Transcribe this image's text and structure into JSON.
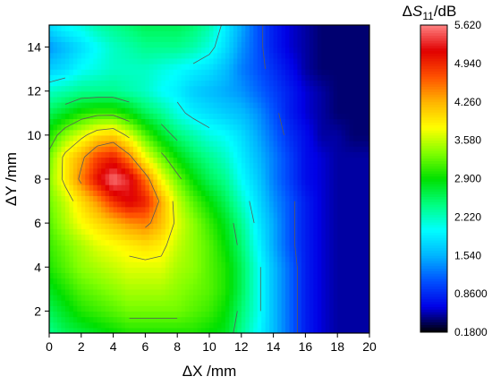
{
  "chart_data": {
    "type": "heatmap",
    "title": "",
    "xlabel": "ΔX /mm",
    "ylabel": "ΔY /mm",
    "colorbar_title": "ΔS11/dB",
    "colorbar_title_parts": {
      "prefix": "Δ",
      "symbol": "S",
      "subscript": "11",
      "suffix": "/dB"
    },
    "xlim": [
      0,
      20
    ],
    "ylim": [
      1,
      15
    ],
    "x_ticks": [
      "0",
      "2",
      "4",
      "6",
      "8",
      "10",
      "12",
      "14",
      "16",
      "18",
      "20"
    ],
    "y_ticks": [
      "2",
      "4",
      "6",
      "8",
      "10",
      "12",
      "14"
    ],
    "x": [
      0,
      1,
      2,
      3,
      4,
      5,
      6,
      7,
      8,
      9,
      10,
      11,
      12,
      13,
      14,
      15,
      16,
      17,
      18,
      19,
      20
    ],
    "y": [
      1,
      2,
      3,
      4,
      5,
      6,
      7,
      8,
      9,
      10,
      11,
      12,
      13,
      14,
      15
    ],
    "z": [
      [
        2.4,
        2.6,
        2.7,
        2.8,
        2.9,
        3.0,
        3.0,
        3.0,
        3.0,
        3.0,
        2.9,
        2.8,
        2.4,
        2.0,
        1.6,
        1.2,
        0.8,
        0.6,
        0.5,
        0.5,
        0.5
      ],
      [
        2.6,
        2.8,
        3.0,
        3.1,
        3.2,
        3.3,
        3.3,
        3.3,
        3.3,
        3.2,
        3.1,
        2.9,
        2.5,
        2.1,
        1.6,
        1.2,
        0.8,
        0.6,
        0.5,
        0.5,
        0.5
      ],
      [
        2.8,
        3.0,
        3.2,
        3.3,
        3.4,
        3.5,
        3.5,
        3.5,
        3.4,
        3.3,
        3.2,
        3.0,
        2.6,
        2.1,
        1.6,
        1.2,
        0.8,
        0.6,
        0.5,
        0.5,
        0.5
      ],
      [
        3.0,
        3.2,
        3.4,
        3.5,
        3.6,
        3.7,
        3.7,
        3.7,
        3.5,
        3.4,
        3.2,
        3.0,
        2.6,
        2.1,
        1.6,
        1.2,
        0.8,
        0.6,
        0.5,
        0.5,
        0.5
      ],
      [
        3.1,
        3.3,
        3.5,
        3.7,
        3.8,
        3.9,
        4.0,
        3.9,
        3.6,
        3.4,
        3.2,
        2.9,
        2.5,
        2.0,
        1.5,
        1.1,
        0.8,
        0.6,
        0.5,
        0.5,
        0.5
      ],
      [
        3.2,
        3.5,
        3.8,
        4.0,
        4.2,
        4.4,
        4.5,
        4.2,
        3.7,
        3.4,
        3.1,
        2.8,
        2.4,
        1.9,
        1.5,
        1.1,
        0.8,
        0.6,
        0.5,
        0.5,
        0.5
      ],
      [
        3.3,
        3.6,
        4.0,
        4.4,
        4.9,
        5.2,
        5.0,
        4.3,
        3.6,
        3.2,
        2.9,
        2.6,
        2.2,
        1.8,
        1.4,
        1.1,
        0.8,
        0.6,
        0.5,
        0.5,
        0.5
      ],
      [
        3.4,
        3.9,
        4.5,
        5.1,
        5.6,
        5.3,
        4.6,
        3.8,
        3.3,
        2.9,
        2.6,
        2.4,
        2.0,
        1.7,
        1.3,
        1.0,
        0.7,
        0.6,
        0.5,
        0.5,
        0.5
      ],
      [
        3.3,
        3.9,
        4.3,
        4.8,
        5.0,
        4.5,
        3.8,
        3.3,
        2.9,
        2.6,
        2.4,
        2.2,
        1.9,
        1.6,
        1.3,
        1.0,
        0.7,
        0.6,
        0.5,
        0.5,
        0.5
      ],
      [
        3.0,
        3.4,
        3.7,
        4.0,
        4.1,
        3.7,
        3.2,
        2.8,
        2.5,
        2.3,
        2.1,
        2.0,
        1.8,
        1.5,
        1.2,
        0.9,
        0.7,
        0.5,
        0.5,
        0.4,
        0.4
      ],
      [
        2.6,
        2.8,
        3.0,
        3.1,
        3.1,
        2.9,
        2.6,
        2.4,
        2.1,
        1.9,
        1.8,
        1.7,
        1.6,
        1.4,
        1.1,
        0.8,
        0.6,
        0.5,
        0.4,
        0.4,
        0.4
      ],
      [
        2.2,
        2.3,
        2.4,
        2.4,
        2.4,
        2.3,
        2.2,
        2.0,
        1.9,
        1.7,
        1.6,
        1.5,
        1.4,
        1.2,
        1.0,
        0.8,
        0.6,
        0.5,
        0.4,
        0.4,
        0.4
      ],
      [
        1.7,
        1.8,
        2.0,
        2.1,
        2.2,
        2.2,
        2.2,
        2.1,
        2.0,
        1.9,
        1.8,
        1.6,
        1.3,
        1.1,
        0.9,
        0.7,
        0.5,
        0.4,
        0.4,
        0.4,
        0.4
      ],
      [
        1.4,
        1.6,
        1.8,
        2.0,
        2.2,
        2.3,
        2.4,
        2.4,
        2.4,
        2.3,
        2.1,
        1.8,
        1.4,
        1.1,
        0.8,
        0.6,
        0.5,
        0.4,
        0.4,
        0.4,
        0.4
      ],
      [
        1.8,
        2.0,
        2.1,
        2.3,
        2.4,
        2.5,
        2.6,
        2.6,
        2.6,
        2.5,
        2.3,
        1.9,
        1.5,
        1.1,
        0.8,
        0.6,
        0.5,
        0.4,
        0.4,
        0.4,
        0.4
      ]
    ],
    "zlim": [
      0.18,
      5.62
    ],
    "colorbar_ticks": [
      "0.1800",
      "0.8600",
      "1.540",
      "2.220",
      "2.900",
      "3.580",
      "4.260",
      "4.940",
      "5.620"
    ],
    "colorbar_tick_values": [
      0.18,
      0.86,
      1.54,
      2.22,
      2.9,
      3.58,
      4.26,
      4.94,
      5.62
    ],
    "colormap": [
      "#000000",
      "#0000e6",
      "#0050ff",
      "#00b4ff",
      "#00ffff",
      "#00ff80",
      "#00e000",
      "#80ff00",
      "#ffff00",
      "#ffb400",
      "#ff5000",
      "#e00000",
      "#ff8080"
    ],
    "contour_levels": [
      1.0,
      2.0,
      2.6,
      3.2,
      3.8,
      4.4
    ],
    "contour_color": "#5a5a5a",
    "grid": false,
    "legend": "colorbar-right"
  }
}
